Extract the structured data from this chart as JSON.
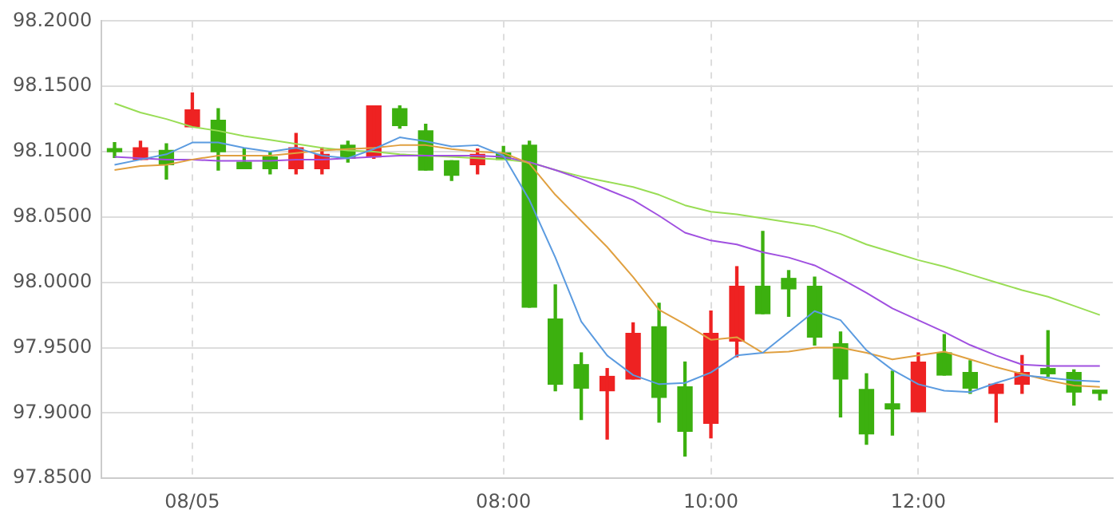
{
  "chart_data": {
    "type": "candlestick",
    "categories": [
      null,
      null,
      null,
      "08/05",
      null,
      null,
      null,
      null,
      null,
      null,
      null,
      null,
      null,
      null,
      null,
      "08:00",
      null,
      null,
      null,
      null,
      null,
      null,
      null,
      "10:00",
      null,
      null,
      null,
      null,
      null,
      null,
      null,
      "12:00",
      null,
      null,
      null,
      null,
      null,
      null,
      null
    ],
    "ohlc": [
      [
        98.102,
        98.107,
        98.0955,
        98.1
      ],
      [
        98.094,
        98.108,
        98.094,
        98.103
      ],
      [
        98.101,
        98.106,
        98.079,
        98.09
      ],
      [
        98.119,
        98.145,
        98.119,
        98.132
      ],
      [
        98.124,
        98.133,
        98.086,
        98.1
      ],
      [
        98.092,
        98.102,
        98.087,
        98.087
      ],
      [
        98.096,
        98.1,
        98.083,
        98.087
      ],
      [
        98.087,
        98.114,
        98.083,
        98.103
      ],
      [
        98.087,
        98.103,
        98.083,
        98.098
      ],
      [
        98.105,
        98.108,
        98.092,
        98.095
      ],
      [
        98.096,
        98.135,
        98.095,
        98.135
      ],
      [
        98.133,
        98.135,
        98.118,
        98.12
      ],
      [
        98.116,
        98.121,
        98.086,
        98.086
      ],
      [
        98.093,
        98.093,
        98.078,
        98.082
      ],
      [
        98.09,
        98.102,
        98.083,
        98.098
      ],
      [
        98.099,
        98.104,
        98.094,
        98.094
      ],
      [
        98.105,
        98.108,
        97.981,
        97.981
      ],
      [
        97.972,
        97.998,
        97.917,
        97.922
      ],
      [
        97.937,
        97.946,
        97.895,
        97.919
      ],
      [
        97.917,
        97.934,
        97.88,
        97.928
      ],
      [
        97.926,
        97.969,
        97.926,
        97.961
      ],
      [
        97.966,
        97.984,
        97.893,
        97.912
      ],
      [
        97.92,
        97.939,
        97.867,
        97.886
      ],
      [
        97.892,
        97.978,
        97.881,
        97.961
      ],
      [
        97.955,
        98.012,
        97.943,
        97.997
      ],
      [
        97.997,
        98.039,
        97.976,
        97.976
      ],
      [
        98.003,
        98.009,
        97.974,
        97.995
      ],
      [
        97.997,
        98.004,
        97.952,
        97.958
      ],
      [
        97.953,
        97.962,
        97.897,
        97.926
      ],
      [
        97.918,
        97.93,
        97.876,
        97.884
      ],
      [
        97.907,
        97.932,
        97.883,
        97.903
      ],
      [
        97.901,
        97.946,
        97.901,
        97.939
      ],
      [
        97.946,
        97.96,
        97.929,
        97.929
      ],
      [
        97.931,
        97.94,
        97.915,
        97.919
      ],
      [
        97.915,
        97.922,
        97.893,
        97.922
      ],
      [
        97.922,
        97.944,
        97.915,
        97.931
      ],
      [
        97.934,
        97.963,
        97.928,
        97.93
      ],
      [
        97.931,
        97.933,
        97.906,
        97.916
      ],
      [
        97.917,
        97.917,
        97.91,
        97.915
      ]
    ],
    "colors": [
      "#3cb00f",
      "#ee2222",
      "#3cb00f",
      "#ee2222",
      "#3cb00f",
      "#3cb00f",
      "#3cb00f",
      "#ee2222",
      "#ee2222",
      "#3cb00f",
      "#ee2222",
      "#3cb00f",
      "#3cb00f",
      "#3cb00f",
      "#ee2222",
      "#3cb00f",
      "#3cb00f",
      "#3cb00f",
      "#3cb00f",
      "#ee2222",
      "#ee2222",
      "#3cb00f",
      "#3cb00f",
      "#ee2222",
      "#ee2222",
      "#3cb00f",
      "#3cb00f",
      "#3cb00f",
      "#3cb00f",
      "#3cb00f",
      "#3cb00f",
      "#ee2222",
      "#3cb00f",
      "#3cb00f",
      "#ee2222",
      "#ee2222",
      "#3cb00f",
      "#3cb00f",
      "#3cb00f"
    ],
    "series": [
      {
        "type": "line",
        "color": "#5b9be0",
        "values": [
          98.09,
          98.094,
          98.098,
          98.107,
          98.107,
          98.103,
          98.1,
          98.103,
          98.097,
          98.095,
          98.102,
          98.111,
          98.108,
          98.104,
          98.105,
          98.097,
          98.063,
          98.019,
          97.97,
          97.944,
          97.929,
          97.922,
          97.923,
          97.931,
          97.944,
          97.946,
          97.962,
          97.978,
          97.971,
          97.948,
          97.933,
          97.922,
          97.917,
          97.916,
          97.923,
          97.929,
          97.927,
          97.925,
          97.924
        ]
      },
      {
        "type": "line",
        "color": "#e0a040",
        "values": [
          98.086,
          98.089,
          98.09,
          98.094,
          98.097,
          98.097,
          98.097,
          98.099,
          98.101,
          98.102,
          98.103,
          98.105,
          98.105,
          98.102,
          98.1,
          98.099,
          98.091,
          98.067,
          98.047,
          98.027,
          98.004,
          97.979,
          97.968,
          97.956,
          97.958,
          97.946,
          97.947,
          97.95,
          97.95,
          97.946,
          97.941,
          97.944,
          97.947,
          97.941,
          97.935,
          97.93,
          97.925,
          97.921,
          97.92
        ]
      },
      {
        "type": "line",
        "color": "#a050e0",
        "values": [
          98.096,
          98.095,
          98.094,
          98.094,
          98.093,
          98.093,
          98.093,
          98.094,
          98.094,
          98.095,
          98.096,
          98.097,
          98.097,
          98.097,
          98.097,
          98.096,
          98.092,
          98.086,
          98.079,
          98.071,
          98.063,
          98.051,
          98.038,
          98.032,
          98.029,
          98.023,
          98.019,
          98.013,
          98.003,
          97.992,
          97.98,
          97.971,
          97.962,
          97.952,
          97.944,
          97.937,
          97.936,
          97.936,
          97.936
        ]
      },
      {
        "type": "line",
        "color": "#99dd55",
        "values": [
          98.137,
          98.13,
          98.125,
          98.119,
          98.116,
          98.112,
          98.109,
          98.106,
          98.103,
          98.101,
          98.1,
          98.098,
          98.097,
          98.096,
          98.095,
          98.094,
          98.092,
          98.086,
          98.081,
          98.077,
          98.073,
          98.067,
          98.059,
          98.054,
          98.052,
          98.049,
          98.046,
          98.043,
          98.037,
          98.029,
          98.023,
          98.017,
          98.012,
          98.006,
          98.0,
          97.994,
          97.989,
          97.982,
          97.975
        ]
      }
    ],
    "ylim": [
      97.85,
      98.2
    ],
    "yticks": [
      {
        "value": 97.85,
        "label": "97.8500"
      },
      {
        "value": 97.9,
        "label": "97.9000"
      },
      {
        "value": 97.95,
        "label": "97.9500"
      },
      {
        "value": 98.0,
        "label": "98.0000"
      },
      {
        "value": 98.05,
        "label": "98.0500"
      },
      {
        "value": 98.1,
        "label": "98.1000"
      },
      {
        "value": 98.15,
        "label": "98.1500"
      },
      {
        "value": 98.2,
        "label": "98.2000"
      }
    ],
    "grid": true,
    "legend": false,
    "marker": "none"
  }
}
